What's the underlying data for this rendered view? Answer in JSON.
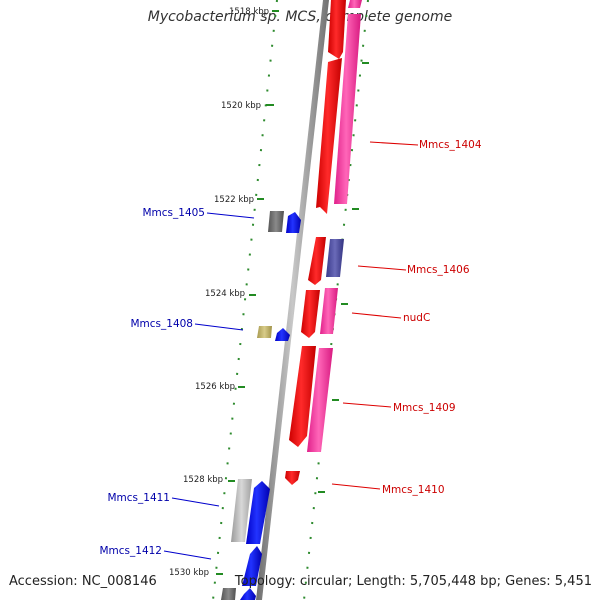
{
  "title": "Mycobacterium sp. MCS, complete genome",
  "footer": {
    "accession": "Accession: NC_008146",
    "stats": "Topology: circular; Length: 5,705,448 bp; Genes: 5,451"
  },
  "colors": {
    "forward_strand": "#0000ee",
    "reverse_strand": "#ee0000",
    "reverse_pseudo": "#ff3399",
    "backbone": "#888888",
    "tick": "#228b22"
  },
  "scale_labels": [
    "1518 kbp",
    "1520 kbp",
    "1522 kbp",
    "1524 kbp",
    "1526 kbp",
    "1528 kbp",
    "1530 kbp"
  ],
  "genes": [
    {
      "label": "Mmcs_1404",
      "strand": "reverse"
    },
    {
      "label": "Mmcs_1405",
      "strand": "forward"
    },
    {
      "label": "Mmcs_1406",
      "strand": "reverse"
    },
    {
      "label": "nudC",
      "strand": "reverse"
    },
    {
      "label": "Mmcs_1408",
      "strand": "forward"
    },
    {
      "label": "Mmcs_1409",
      "strand": "reverse"
    },
    {
      "label": "Mmcs_1410",
      "strand": "reverse"
    },
    {
      "label": "Mmcs_1411",
      "strand": "forward"
    },
    {
      "label": "Mmcs_1412",
      "strand": "forward"
    }
  ]
}
